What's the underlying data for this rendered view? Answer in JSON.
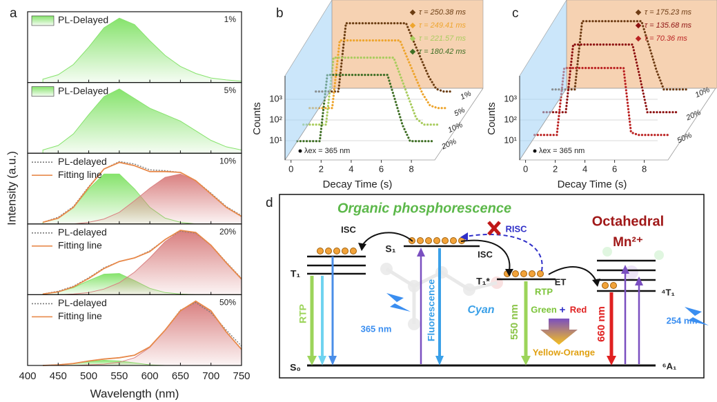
{
  "chart_data": [
    {
      "type": "line",
      "label": "a",
      "x_label": "Wavelength (nm)",
      "y_label": "Intensity (a.u.)",
      "xlim": [
        400,
        750
      ],
      "xticks": [
        400,
        450,
        500,
        550,
        600,
        650,
        700,
        750
      ],
      "x": [
        425,
        450,
        475,
        500,
        525,
        550,
        575,
        600,
        625,
        650,
        675,
        700,
        725,
        750
      ],
      "panels": [
        {
          "label": "1%",
          "ylim": [
            0,
            1.1
          ],
          "series": [
            {
              "name": "PL-Delayed",
              "color": "#86e36c",
              "style": "fill",
              "values": [
                0.05,
                0.12,
                0.28,
                0.55,
                0.85,
                1.0,
                0.9,
                0.65,
                0.42,
                0.25,
                0.14,
                0.07,
                0.04,
                0.02
              ]
            }
          ]
        },
        {
          "label": "5%",
          "ylim": [
            0,
            1.1
          ],
          "series": [
            {
              "name": "PL-Delayed",
              "color": "#86e36c",
              "style": "fill",
              "values": [
                0.05,
                0.12,
                0.3,
                0.6,
                0.88,
                1.0,
                0.85,
                0.7,
                0.6,
                0.5,
                0.35,
                0.2,
                0.1,
                0.05
              ]
            }
          ]
        },
        {
          "label": "10%",
          "ylim": [
            0,
            0.85
          ],
          "series": [
            {
              "name": "PL-delayed",
              "color": "#777777",
              "style": "dotted",
              "values": [
                0.02,
                0.08,
                0.21,
                0.45,
                0.66,
                0.75,
                0.72,
                0.65,
                0.64,
                0.62,
                0.52,
                0.37,
                0.21,
                0.1
              ]
            },
            {
              "name": "Fitting line",
              "color": "#e8894a",
              "style": "solid",
              "values": [
                0.02,
                0.07,
                0.2,
                0.44,
                0.66,
                0.74,
                0.7,
                0.63,
                0.63,
                0.62,
                0.52,
                0.36,
                0.2,
                0.09
              ]
            },
            {
              "color": "#86e36c",
              "style": "fill",
              "values": [
                0.02,
                0.07,
                0.2,
                0.42,
                0.6,
                0.6,
                0.42,
                0.2,
                0.07,
                0.02,
                0,
                0,
                0,
                0
              ]
            },
            {
              "color": "#d98080",
              "style": "fill",
              "values": [
                0,
                0,
                0,
                0.02,
                0.06,
                0.14,
                0.28,
                0.43,
                0.56,
                0.6,
                0.52,
                0.36,
                0.2,
                0.09
              ]
            }
          ]
        },
        {
          "label": "20%",
          "ylim": [
            0,
            1.0
          ],
          "series": [
            {
              "name": "PL-delayed",
              "color": "#777777",
              "style": "dotted",
              "values": [
                0.01,
                0.05,
                0.12,
                0.24,
                0.38,
                0.47,
                0.52,
                0.62,
                0.78,
                0.9,
                0.87,
                0.7,
                0.46,
                0.23
              ]
            },
            {
              "name": "Fitting line",
              "color": "#e8894a",
              "style": "solid",
              "values": [
                0.01,
                0.04,
                0.11,
                0.23,
                0.37,
                0.47,
                0.52,
                0.61,
                0.78,
                0.91,
                0.88,
                0.7,
                0.45,
                0.22
              ]
            },
            {
              "color": "#86e36c",
              "style": "fill",
              "values": [
                0.01,
                0.04,
                0.1,
                0.2,
                0.29,
                0.3,
                0.2,
                0.09,
                0.03,
                0.01,
                0,
                0,
                0,
                0
              ]
            },
            {
              "color": "#d98080",
              "style": "fill",
              "values": [
                0,
                0,
                0.01,
                0.03,
                0.08,
                0.17,
                0.32,
                0.52,
                0.75,
                0.9,
                0.88,
                0.7,
                0.45,
                0.22
              ]
            }
          ]
        },
        {
          "label": "50%",
          "ylim": [
            0,
            1.1
          ],
          "series": [
            {
              "name": "PL-delayed",
              "color": "#777777",
              "style": "dotted",
              "values": [
                0,
                0.01,
                0.03,
                0.07,
                0.1,
                0.12,
                0.16,
                0.29,
                0.55,
                0.86,
                0.98,
                0.82,
                0.55,
                0.3
              ]
            },
            {
              "name": "Fitting line",
              "color": "#e8894a",
              "style": "solid",
              "values": [
                0,
                0.01,
                0.03,
                0.07,
                0.1,
                0.12,
                0.16,
                0.29,
                0.55,
                0.85,
                1.0,
                0.85,
                0.52,
                0.25
              ]
            },
            {
              "color": "#86e36c",
              "style": "fill",
              "values": [
                0,
                0.01,
                0.03,
                0.06,
                0.08,
                0.07,
                0.04,
                0.01,
                0,
                0,
                0,
                0,
                0,
                0
              ]
            },
            {
              "color": "#d98080",
              "style": "fill",
              "values": [
                0,
                0,
                0,
                0.01,
                0.02,
                0.05,
                0.12,
                0.28,
                0.55,
                0.85,
                1.0,
                0.85,
                0.52,
                0.25
              ]
            }
          ]
        }
      ]
    },
    {
      "type": "waterfall",
      "label": "b",
      "x_label": "Decay Time (s)",
      "y_label": "Counts",
      "annotation": "λex = 365 nm",
      "log_y": true,
      "xlim": [
        -0.4,
        9.6
      ],
      "xticks": [
        0,
        2,
        4,
        6,
        8
      ],
      "ylim": [
        1,
        10000
      ],
      "yticks": [
        {
          "value": 10,
          "label": "10¹"
        },
        {
          "value": 100,
          "label": "10²"
        },
        {
          "value": 1000,
          "label": "10³"
        }
      ],
      "x": [
        0,
        0.5,
        1,
        1.5,
        2,
        2.5,
        3,
        3.5,
        4,
        4.5,
        5,
        5.5,
        6,
        6.5,
        7,
        7.5,
        8,
        8.5,
        9
      ],
      "series": [
        {
          "name": "τ = 250.38 ms",
          "label": "1%",
          "color": "#6b3d12",
          "values": [
            1.5,
            1.5,
            1.5,
            1.5,
            3000,
            3000,
            3000,
            3000,
            3000,
            3000,
            3000,
            3000,
            3000,
            400,
            55,
            8,
            2,
            1.5,
            1.5
          ]
        },
        {
          "name": "τ = 249.41 ms",
          "label": "5%",
          "color": "#eea52e",
          "values": [
            1.5,
            1.5,
            1.5,
            1.5,
            2800,
            2800,
            2800,
            2800,
            2800,
            2800,
            2800,
            2800,
            2800,
            380,
            52,
            7.5,
            2,
            1.5,
            1.5
          ]
        },
        {
          "name": "τ = 221.57 ms",
          "label": "10%",
          "color": "#a9cc5e",
          "values": [
            1.5,
            1.5,
            1.5,
            1.5,
            2600,
            2600,
            2600,
            2600,
            2600,
            2600,
            2600,
            2600,
            2600,
            270,
            28,
            3,
            1.5,
            1.5,
            1.5
          ]
        },
        {
          "name": "τ = 180.42 ms",
          "label": "20%",
          "color": "#3f6f25",
          "values": [
            1.5,
            1.5,
            1.5,
            1.5,
            2400,
            2400,
            2400,
            2400,
            2400,
            2400,
            2400,
            2400,
            2400,
            150,
            9,
            1.5,
            1.5,
            1.5,
            1.5
          ]
        }
      ]
    },
    {
      "type": "waterfall",
      "label": "c",
      "x_label": "Decay Time (s)",
      "y_label": "Counts",
      "annotation": "λex = 365 nm",
      "log_y": true,
      "xlim": [
        -0.4,
        9.6
      ],
      "xticks": [
        0,
        2,
        4,
        6,
        8
      ],
      "ylim": [
        1,
        10000
      ],
      "yticks": [
        {
          "value": 10,
          "label": "10¹"
        },
        {
          "value": 100,
          "label": "10²"
        },
        {
          "value": 1000,
          "label": "10³"
        }
      ],
      "x": [
        0,
        0.5,
        1,
        1.5,
        2,
        2.5,
        3,
        3.5,
        4,
        4.5,
        5,
        5.5,
        6,
        6.5,
        7,
        7.5,
        8,
        8.5,
        9
      ],
      "series": [
        {
          "name": "τ = 175.23 ms",
          "label": "10%",
          "color": "#6e3c14",
          "values": [
            1.5,
            1.5,
            1.5,
            1.5,
            3000,
            3000,
            3000,
            3000,
            3000,
            3000,
            3000,
            3000,
            3000,
            200,
            13,
            1.5,
            1.5,
            1.5,
            1.5
          ]
        },
        {
          "name": "τ = 135.68 ms",
          "label": "20%",
          "color": "#8e1212",
          "values": [
            1.5,
            1.5,
            1.5,
            1.5,
            2800,
            2800,
            2800,
            2800,
            2800,
            2800,
            2800,
            2800,
            2800,
            70,
            1.5,
            1.5,
            1.5,
            1.5,
            1.5
          ]
        },
        {
          "name": "τ = 70.36 ms",
          "label": "50%",
          "color": "#bb2222",
          "values": [
            1.5,
            1.5,
            1.5,
            1.5,
            2600,
            2600,
            2600,
            2600,
            2600,
            2600,
            2600,
            2600,
            2600,
            2,
            1.5,
            1.5,
            1.5,
            1.5,
            1.5
          ]
        }
      ]
    }
  ],
  "diagram": {
    "label": "d",
    "title": "Organic phosphorescence",
    "isc_left": "ISC",
    "s1": "S₁",
    "risc": "RISC",
    "isc_right": "ISC",
    "t1_star": "T₁*",
    "et": "ET",
    "mn_title": "Octahedral",
    "mn_ion": "Mn²⁺",
    "t1": "T₁",
    "mn_t1": "⁴T₁",
    "s0": "S₀",
    "mn_a1": "⁶A₁",
    "rtp_left": "RTP",
    "excitation_left": "365 nm",
    "fluorescence": "Fluorescence",
    "cyan": "Cyan",
    "emission_550": "550 nm",
    "rtp_right": "RTP",
    "green": "Green",
    "plus": "+",
    "red": "Red",
    "yellow_orange": "Yellow-Orange",
    "emission_660": "660 nm",
    "excitation_right": "254 nm"
  }
}
